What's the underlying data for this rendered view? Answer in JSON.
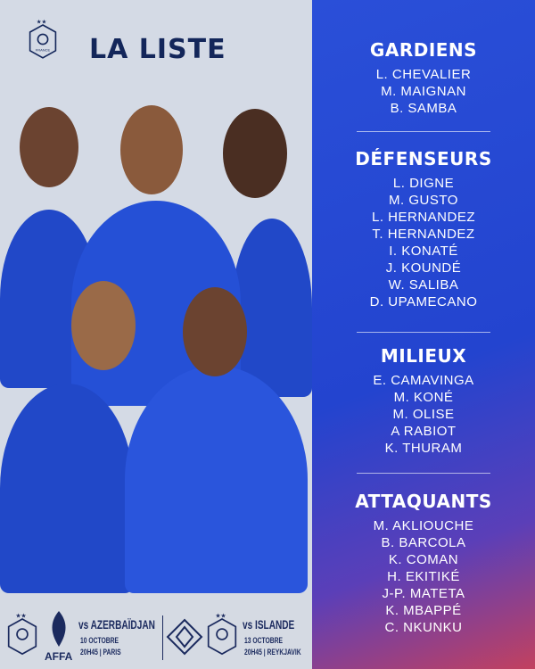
{
  "header": {
    "title": "LA LISTE",
    "crest_text": "FRANCE"
  },
  "squad": [
    {
      "heading": "GARDIENS",
      "players": [
        "L. CHEVALIER",
        "M. MAIGNAN",
        "B. SAMBA"
      ]
    },
    {
      "heading": "DÉFENSEURS",
      "players": [
        "L. DIGNE",
        "M. GUSTO",
        "L. HERNANDEZ",
        "T. HERNANDEZ",
        "I. KONATÉ",
        "J. KOUNDÉ",
        "W. SALIBA",
        "D. UPAMECANO"
      ]
    },
    {
      "heading": "MILIEUX",
      "players": [
        "E. CAMAVINGA",
        "M. KONÉ",
        "M. OLISE",
        "A RABIOT",
        "K. THURAM"
      ]
    },
    {
      "heading": "ATTAQUANTS",
      "players": [
        "M. AKLIOUCHE",
        "B. BARCOLA",
        "K. COMAN",
        "H. EKITIKÉ",
        "J-P. MATETA",
        "K. MBAPPÉ",
        "C. NKUNKU"
      ]
    }
  ],
  "matches": [
    {
      "opponent": "vs AZERBAÏDJAN",
      "date": "10 OCTOBRE",
      "time_place": "20H45 | PARIS",
      "logo_text": "AFFA"
    },
    {
      "opponent": "vs ISLANDE",
      "date": "13 OCTOBRE",
      "time_place": "20H45 | REYKJAVIK"
    }
  ],
  "colors": {
    "navy": "#13265a",
    "blue": "#2344cf",
    "jersey": "#2148c8"
  }
}
